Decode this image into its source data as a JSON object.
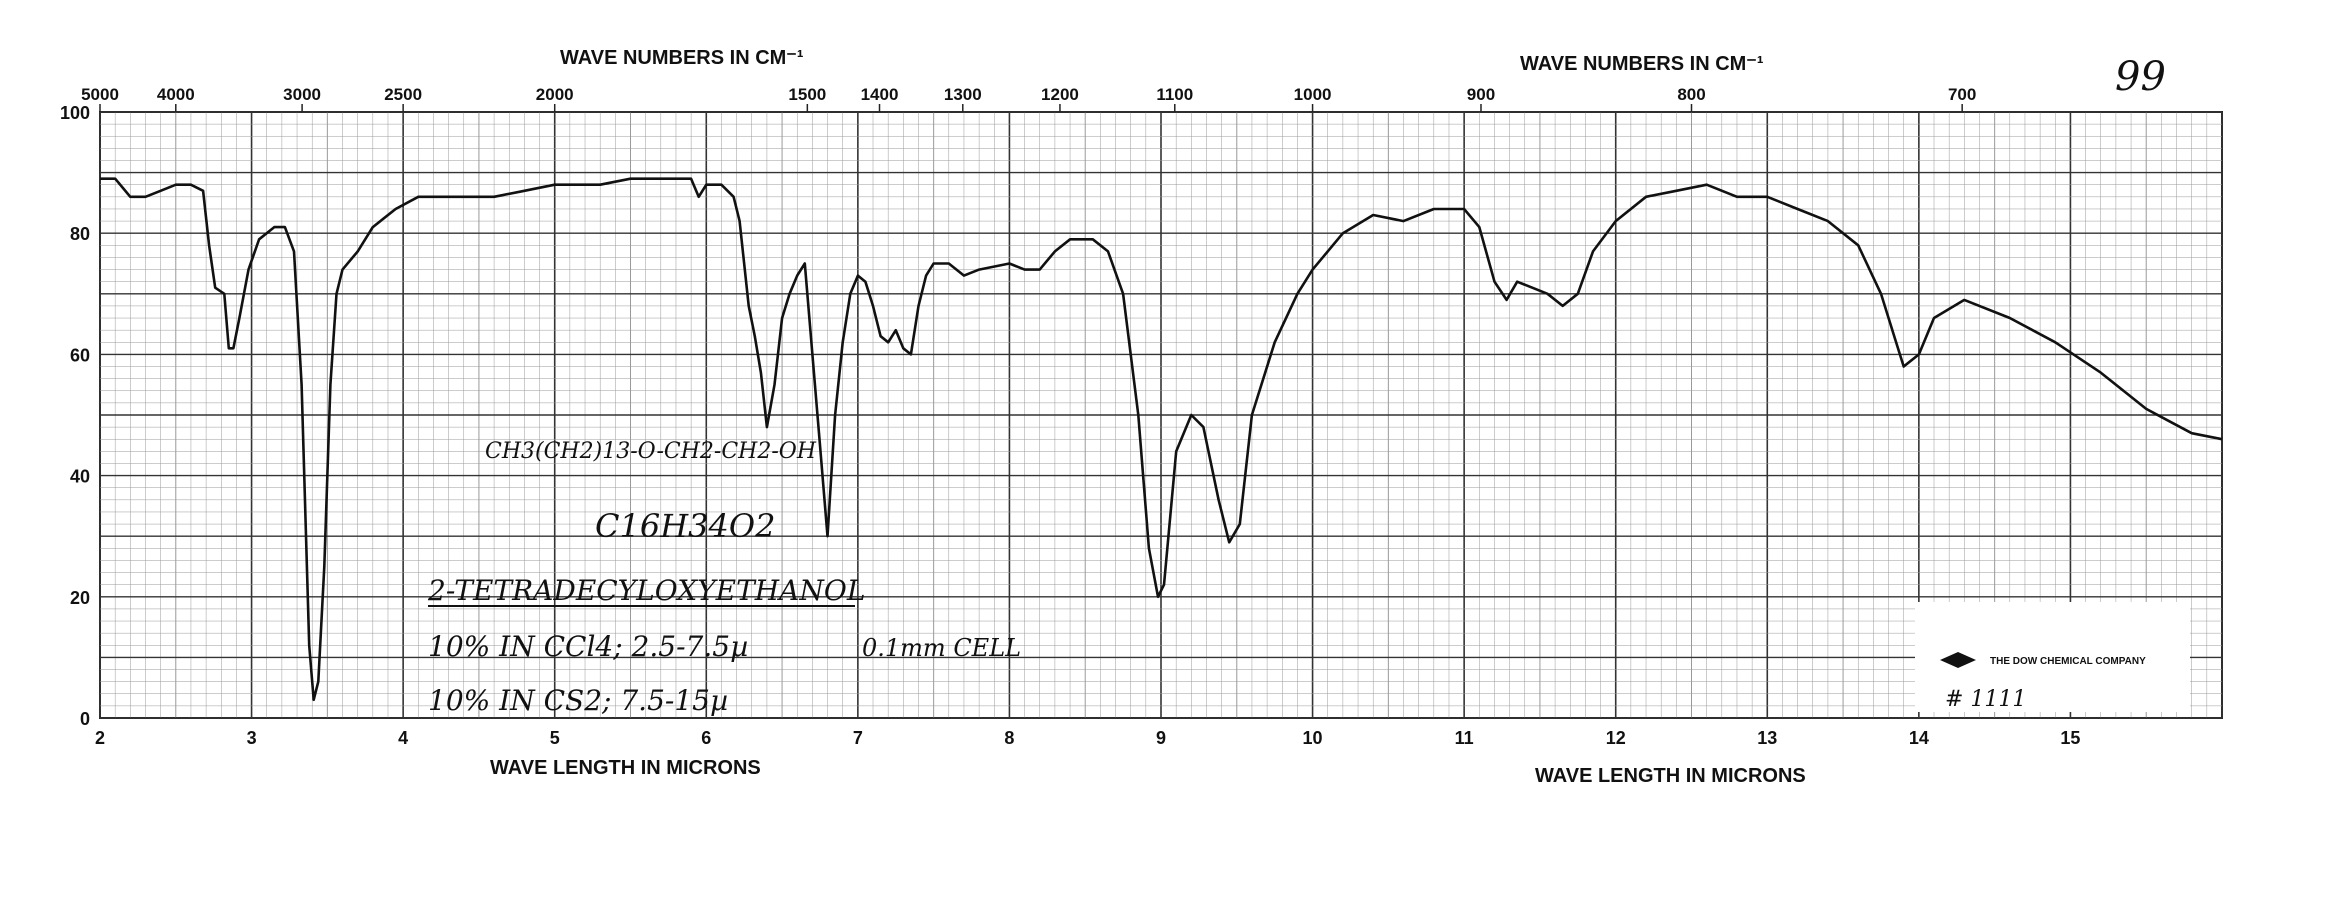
{
  "sheet_number": "99",
  "stamp": {
    "company": "THE DOW CHEMICAL COMPANY",
    "number": "# 1111"
  },
  "annotations": {
    "structure": "CH3(CH2)13-O-CH2-CH2-OH",
    "formula": "C16H34O2",
    "name": "2-TETRADECYLOXYETHANOL",
    "cell1": "10% IN CCl4; 2.5-7.5µ",
    "cell_thickness": "0.1mm CELL",
    "cell2": "10% IN CS2; 7.5-15µ"
  },
  "chart_data": {
    "type": "line",
    "top_axis_label_left": "WAVE NUMBERS IN CM⁻¹",
    "top_axis_label_right": "WAVE NUMBERS IN CM⁻¹",
    "bottom_axis_label_left": "WAVE LENGTH IN MICRONS",
    "bottom_axis_label_right": "WAVE LENGTH IN MICRONS",
    "x_range": [
      2,
      16
    ],
    "y_range": [
      0,
      100
    ],
    "y_ticks": [
      "0",
      "20",
      "40",
      "60",
      "80",
      "100"
    ],
    "x_ticks": [
      "2",
      "3",
      "4",
      "5",
      "6",
      "7",
      "8",
      "9",
      "10",
      "11",
      "12",
      "13",
      "14",
      "15"
    ],
    "wavenumber_ticks": [
      {
        "label": "5000",
        "wavenumber": 5000
      },
      {
        "label": "4000",
        "wavenumber": 4000
      },
      {
        "label": "3000",
        "wavenumber": 3000
      },
      {
        "label": "2500",
        "wavenumber": 2500
      },
      {
        "label": "2000",
        "wavenumber": 2000
      },
      {
        "label": "1500",
        "wavenumber": 1500
      },
      {
        "label": "1400",
        "wavenumber": 1400
      },
      {
        "label": "1300",
        "wavenumber": 1300
      },
      {
        "label": "1200",
        "wavenumber": 1200
      },
      {
        "label": "1100",
        "wavenumber": 1100
      },
      {
        "label": "1000",
        "wavenumber": 1000
      },
      {
        "label": "900",
        "wavenumber": 900
      },
      {
        "label": "800",
        "wavenumber": 800
      },
      {
        "label": "700",
        "wavenumber": 700
      }
    ],
    "grid": true,
    "series": [
      {
        "points": [
          [
            2.0,
            89
          ],
          [
            2.1,
            89
          ],
          [
            2.2,
            86
          ],
          [
            2.3,
            86
          ],
          [
            2.4,
            87
          ],
          [
            2.5,
            88
          ],
          [
            2.6,
            88
          ],
          [
            2.68,
            87
          ],
          [
            2.72,
            78
          ],
          [
            2.76,
            71
          ],
          [
            2.82,
            70
          ],
          [
            2.85,
            61
          ],
          [
            2.88,
            61
          ],
          [
            2.92,
            66
          ],
          [
            2.98,
            74
          ],
          [
            3.05,
            79
          ],
          [
            3.15,
            81
          ],
          [
            3.22,
            81
          ],
          [
            3.28,
            77
          ],
          [
            3.33,
            55
          ],
          [
            3.38,
            12
          ],
          [
            3.41,
            3
          ],
          [
            3.44,
            6
          ],
          [
            3.48,
            25
          ],
          [
            3.52,
            55
          ],
          [
            3.56,
            70
          ],
          [
            3.6,
            74
          ],
          [
            3.7,
            77
          ],
          [
            3.8,
            81
          ],
          [
            3.95,
            84
          ],
          [
            4.1,
            86
          ],
          [
            4.3,
            86
          ],
          [
            4.6,
            86
          ],
          [
            4.8,
            87
          ],
          [
            5.0,
            88
          ],
          [
            5.3,
            88
          ],
          [
            5.5,
            89
          ],
          [
            5.8,
            89
          ],
          [
            5.9,
            89
          ],
          [
            5.95,
            86
          ],
          [
            6.0,
            88
          ],
          [
            6.1,
            88
          ],
          [
            6.18,
            86
          ],
          [
            6.22,
            82
          ],
          [
            6.28,
            68
          ],
          [
            6.32,
            63
          ],
          [
            6.36,
            57
          ],
          [
            6.4,
            48
          ],
          [
            6.45,
            55
          ],
          [
            6.5,
            66
          ],
          [
            6.55,
            70
          ],
          [
            6.6,
            73
          ],
          [
            6.65,
            75
          ],
          [
            6.7,
            60
          ],
          [
            6.75,
            45
          ],
          [
            6.8,
            30
          ],
          [
            6.85,
            50
          ],
          [
            6.9,
            62
          ],
          [
            6.95,
            70
          ],
          [
            7.0,
            73
          ],
          [
            7.05,
            72
          ],
          [
            7.1,
            68
          ],
          [
            7.15,
            63
          ],
          [
            7.2,
            62
          ],
          [
            7.25,
            64
          ],
          [
            7.3,
            61
          ],
          [
            7.35,
            60
          ],
          [
            7.4,
            68
          ],
          [
            7.45,
            73
          ],
          [
            7.5,
            75
          ],
          [
            7.6,
            75
          ],
          [
            7.7,
            73
          ],
          [
            7.8,
            74
          ],
          [
            8.0,
            75
          ],
          [
            8.1,
            74
          ],
          [
            8.2,
            74
          ],
          [
            8.3,
            77
          ],
          [
            8.4,
            79
          ],
          [
            8.55,
            79
          ],
          [
            8.65,
            77
          ],
          [
            8.75,
            70
          ],
          [
            8.85,
            50
          ],
          [
            8.92,
            28
          ],
          [
            8.98,
            20
          ],
          [
            9.02,
            22
          ],
          [
            9.1,
            44
          ],
          [
            9.2,
            50
          ],
          [
            9.28,
            48
          ],
          [
            9.38,
            36
          ],
          [
            9.45,
            29
          ],
          [
            9.52,
            32
          ],
          [
            9.6,
            50
          ],
          [
            9.75,
            62
          ],
          [
            9.9,
            70
          ],
          [
            10.0,
            74
          ],
          [
            10.2,
            80
          ],
          [
            10.4,
            83
          ],
          [
            10.6,
            82
          ],
          [
            10.8,
            84
          ],
          [
            11.0,
            84
          ],
          [
            11.1,
            81
          ],
          [
            11.2,
            72
          ],
          [
            11.28,
            69
          ],
          [
            11.35,
            72
          ],
          [
            11.45,
            71
          ],
          [
            11.55,
            70
          ],
          [
            11.65,
            68
          ],
          [
            11.75,
            70
          ],
          [
            11.85,
            77
          ],
          [
            12.0,
            82
          ],
          [
            12.2,
            86
          ],
          [
            12.4,
            87
          ],
          [
            12.6,
            88
          ],
          [
            12.8,
            86
          ],
          [
            13.0,
            86
          ],
          [
            13.2,
            84
          ],
          [
            13.4,
            82
          ],
          [
            13.6,
            78
          ],
          [
            13.75,
            70
          ],
          [
            13.85,
            62
          ],
          [
            13.9,
            58
          ],
          [
            14.0,
            60
          ],
          [
            14.1,
            66
          ],
          [
            14.3,
            69
          ],
          [
            14.6,
            66
          ],
          [
            14.9,
            62
          ],
          [
            15.2,
            57
          ],
          [
            15.5,
            51
          ],
          [
            15.8,
            47
          ],
          [
            16.0,
            46
          ]
        ]
      }
    ]
  },
  "colors": {
    "grid": "#9a9a9a",
    "trace": "#111111",
    "paper": "#ffffff"
  }
}
